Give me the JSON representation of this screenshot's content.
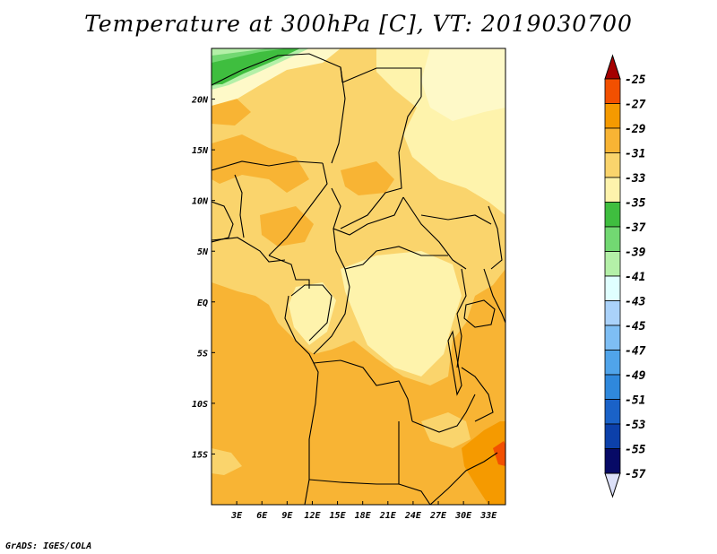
{
  "title": "Temperature at 300hPa [C], VT: 2019030700",
  "credit": "GrADS: IGES/COLA",
  "map": {
    "lon_labels": [
      "3E",
      "6E",
      "9E",
      "12E",
      "15E",
      "18E",
      "21E",
      "24E",
      "27E",
      "30E",
      "33E"
    ],
    "lon_values": [
      3,
      6,
      9,
      12,
      15,
      18,
      21,
      24,
      27,
      30,
      33
    ],
    "lat_labels": [
      "20N",
      "15N",
      "10N",
      "5N",
      "EQ",
      "5S",
      "10S",
      "15S"
    ],
    "lat_values": [
      20,
      15,
      10,
      5,
      0,
      -5,
      -10,
      -15
    ],
    "extent": {
      "lon_min": 0,
      "lon_max": 35,
      "lat_min": -20,
      "lat_max": 25
    }
  },
  "colorbar": {
    "labels": [
      "-25",
      "-27",
      "-29",
      "-31",
      "-33",
      "-35",
      "-37",
      "-39",
      "-41",
      "-43",
      "-45",
      "-47",
      "-49",
      "-51",
      "-53",
      "-55",
      "-57"
    ],
    "colors": [
      "#a50000",
      "#f25000",
      "#f59a00",
      "#f8b434",
      "#fad46c",
      "#fef3ac",
      "#3fbe3f",
      "#72d872",
      "#b4f0a8",
      "#e0ffff",
      "#aad2fa",
      "#7ebef4",
      "#50a4ea",
      "#2f88dc",
      "#1a62c8",
      "#0c40aa",
      "#070a66",
      "#dce0f8"
    ]
  }
}
